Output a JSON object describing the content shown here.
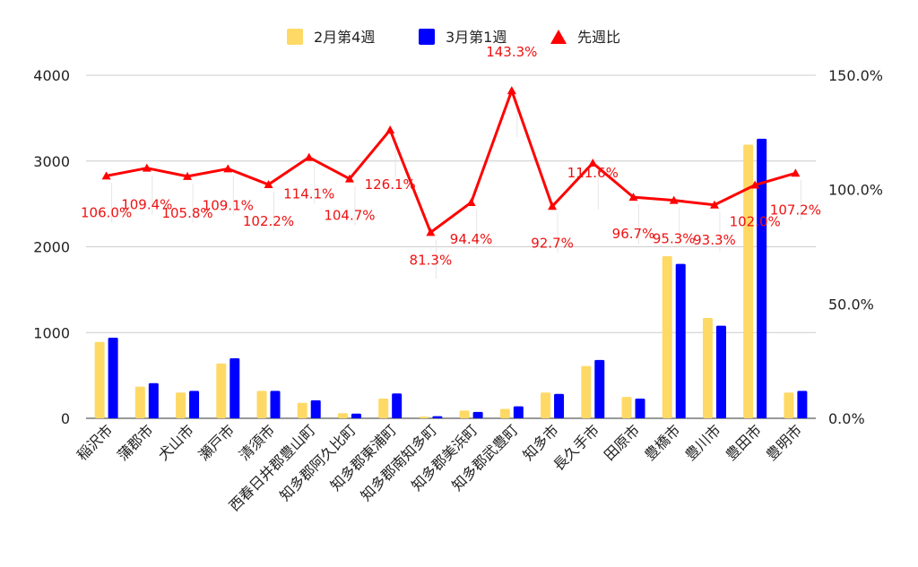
{
  "chart_data": {
    "type": "bar",
    "categories": [
      "稲沢市",
      "蒲郡市",
      "犬山市",
      "瀬戸市",
      "清須市",
      "西春日井郡豊山町",
      "知多郡阿久比町",
      "知多郡東浦町",
      "知多郡南知多町",
      "知多郡美浜町",
      "知多郡武豊町",
      "知多市",
      "長久手市",
      "田原市",
      "豊橋市",
      "豊川市",
      "豊田市",
      "豊明市"
    ],
    "series": [
      {
        "name": "2月第4週",
        "color": "#ffd966",
        "axis": "left",
        "kind": "bar",
        "values": [
          890,
          370,
          300,
          640,
          320,
          180,
          60,
          230,
          20,
          90,
          110,
          300,
          610,
          250,
          1890,
          1170,
          3190,
          300
        ]
      },
      {
        "name": "3月第1週",
        "color": "#0000ff",
        "axis": "left",
        "kind": "bar",
        "values": [
          940,
          410,
          320,
          700,
          320,
          210,
          55,
          290,
          25,
          75,
          140,
          285,
          680,
          230,
          1800,
          1080,
          3260,
          320
        ]
      },
      {
        "name": "先週比",
        "color": "#ff0000",
        "axis": "right",
        "kind": "line",
        "marker": "triangle",
        "values": [
          106.0,
          109.4,
          105.8,
          109.1,
          102.2,
          114.1,
          104.7,
          126.1,
          81.3,
          94.4,
          143.3,
          92.7,
          111.6,
          96.7,
          95.3,
          93.3,
          102.0,
          107.2
        ],
        "labels": [
          "106.0%",
          "109.4%",
          "105.8%",
          "109.1%",
          "102.2%",
          "114.1%",
          "104.7%",
          "126.1%",
          "81.3%",
          "94.4%",
          "143.3%",
          "92.7%",
          "111.6%",
          "96.7%",
          "95.3%",
          "93.3%",
          "102.0%",
          "107.2%"
        ]
      }
    ],
    "y_left": {
      "min": 0,
      "max": 4000,
      "ticks": [
        0,
        1000,
        2000,
        3000,
        4000
      ],
      "tick_labels": [
        "0",
        "1000",
        "2000",
        "3000",
        "4000"
      ]
    },
    "y_right": {
      "min": 0,
      "max": 150,
      "ticks": [
        0,
        50,
        100,
        150
      ],
      "tick_labels": [
        "0.0%",
        "50.0%",
        "100.0%",
        "150.0%"
      ]
    },
    "legend_position": "top",
    "grid": true
  }
}
